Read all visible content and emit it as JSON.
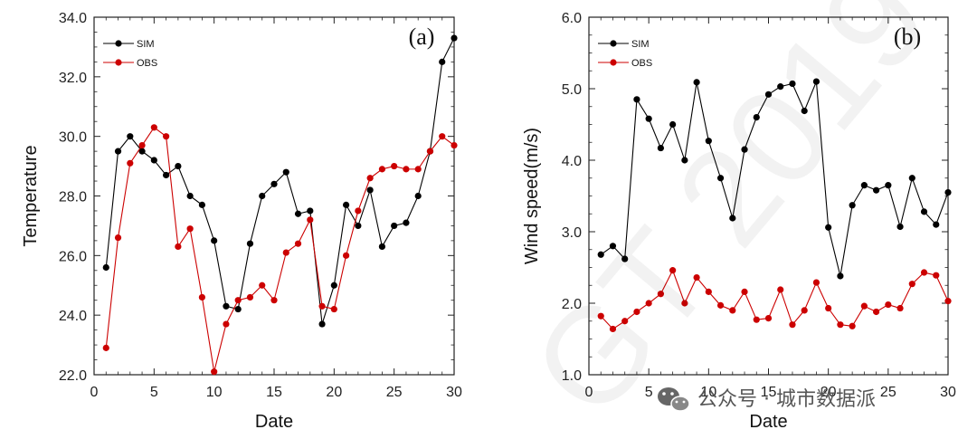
{
  "chart_data": [
    {
      "type": "line",
      "panel_label": "(a)",
      "xlabel": "Date",
      "ylabel": "Temperature",
      "xlim": [
        0,
        30
      ],
      "ylim": [
        22,
        34
      ],
      "x_ticks": [
        0,
        5,
        10,
        15,
        20,
        25,
        30
      ],
      "y_ticks": [
        22,
        24,
        26,
        28,
        30,
        32,
        34
      ],
      "x_tick_labels": [
        "0",
        "5",
        "10",
        "15",
        "20",
        "25",
        "30"
      ],
      "y_tick_labels": [
        "22.0",
        "24.0",
        "26.0",
        "28.0",
        "30.0",
        "32.0",
        "34.0"
      ],
      "grid": false,
      "legend_position": "top-left",
      "x": [
        1,
        2,
        3,
        4,
        5,
        6,
        7,
        8,
        9,
        10,
        11,
        12,
        13,
        14,
        15,
        16,
        17,
        18,
        19,
        20,
        21,
        22,
        23,
        24,
        25,
        26,
        27,
        28,
        29,
        30
      ],
      "series": [
        {
          "name": "SIM",
          "color": "#000000",
          "values": [
            25.6,
            29.5,
            30.0,
            29.5,
            29.2,
            28.7,
            29.0,
            28.0,
            27.7,
            26.5,
            24.3,
            24.2,
            26.4,
            28.0,
            28.4,
            28.8,
            27.4,
            27.5,
            23.7,
            25.0,
            27.7,
            27.0,
            28.2,
            26.3,
            27.0,
            27.1,
            28.0,
            29.5,
            32.5,
            33.3
          ]
        },
        {
          "name": "OBS",
          "color": "#cc0000",
          "values": [
            22.9,
            26.6,
            29.1,
            29.7,
            30.3,
            30.0,
            26.3,
            26.9,
            24.6,
            22.1,
            23.7,
            24.5,
            24.6,
            25.0,
            24.5,
            26.1,
            26.4,
            27.2,
            24.3,
            24.2,
            26.0,
            27.5,
            28.6,
            28.9,
            29.0,
            28.9,
            28.9,
            29.5,
            30.0,
            29.7
          ]
        }
      ]
    },
    {
      "type": "line",
      "panel_label": "(b)",
      "xlabel": "Date",
      "ylabel": "Wind speed(m/s)",
      "xlim": [
        0,
        30
      ],
      "ylim": [
        1,
        6
      ],
      "x_ticks": [
        0,
        5,
        10,
        15,
        20,
        25,
        30
      ],
      "y_ticks": [
        1,
        2,
        3,
        4,
        5,
        6
      ],
      "x_tick_labels": [
        "0",
        "5",
        "10",
        "15",
        "20",
        "25",
        "30"
      ],
      "y_tick_labels": [
        "1.0",
        "2.0",
        "3.0",
        "4.0",
        "5.0",
        "6.0"
      ],
      "grid": false,
      "legend_position": "top-left",
      "x": [
        1,
        2,
        3,
        4,
        5,
        6,
        7,
        8,
        9,
        10,
        11,
        12,
        13,
        14,
        15,
        16,
        17,
        18,
        19,
        20,
        21,
        22,
        23,
        24,
        25,
        26,
        27,
        28,
        29,
        30
      ],
      "series": [
        {
          "name": "SIM",
          "color": "#000000",
          "values": [
            2.68,
            2.8,
            2.62,
            4.85,
            4.58,
            4.17,
            4.5,
            4.0,
            5.09,
            4.27,
            3.75,
            3.19,
            4.15,
            4.6,
            4.92,
            5.03,
            5.07,
            4.69,
            5.1,
            3.06,
            2.38,
            3.37,
            3.65,
            3.58,
            3.65,
            3.07,
            3.75,
            3.28,
            3.1,
            3.55
          ]
        },
        {
          "name": "OBS",
          "color": "#cc0000",
          "values": [
            1.82,
            1.64,
            1.75,
            1.88,
            2.0,
            2.13,
            2.46,
            2.0,
            2.36,
            2.16,
            1.97,
            1.9,
            2.16,
            1.77,
            1.79,
            2.19,
            1.7,
            1.9,
            2.29,
            1.93,
            1.7,
            1.68,
            1.96,
            1.88,
            1.98,
            1.93,
            2.27,
            2.43,
            2.39,
            2.03
          ]
        }
      ]
    }
  ],
  "watermark": {
    "text": "公众号 · 城市数据派",
    "icon": "wechat-icon",
    "background_text": "GT 2019"
  }
}
